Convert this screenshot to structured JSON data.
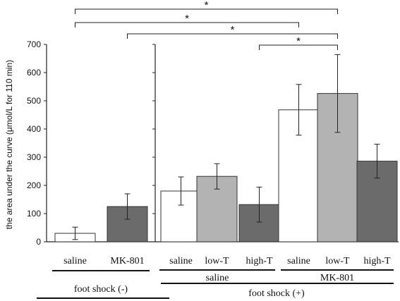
{
  "chart_data": {
    "type": "bar",
    "title": "",
    "ylabel": "the area under the curve (μmol/L for 110 min)",
    "ylim": [
      0,
      700
    ],
    "yticks": [
      0,
      100,
      200,
      300,
      400,
      500,
      600,
      700
    ],
    "panels": [
      {
        "group_label": "foot shock (-)",
        "bars": [
          {
            "category": "saline",
            "value": 30,
            "error": 22,
            "color": "#ffffff"
          },
          {
            "category": "MK-801",
            "value": 125,
            "error": 45,
            "color": "#6b6b6b"
          }
        ]
      },
      {
        "group_label": "foot shock (+)",
        "subgroups": [
          {
            "label": "saline",
            "bars": [
              {
                "category": "saline",
                "value": 180,
                "error": 50,
                "color": "#ffffff"
              },
              {
                "category": "low-T",
                "value": 232,
                "error": 45,
                "color": "#b3b3b3"
              },
              {
                "category": "high-T",
                "value": 132,
                "error": 62,
                "color": "#6b6b6b"
              }
            ]
          },
          {
            "label": "MK-801",
            "bars": [
              {
                "category": "saline",
                "value": 468,
                "error": 90,
                "color": "#ffffff"
              },
              {
                "category": "low-T",
                "value": 526,
                "error": 138,
                "color": "#b3b3b3"
              },
              {
                "category": "high-T",
                "value": 286,
                "error": 60,
                "color": "#6b6b6b"
              }
            ]
          }
        ]
      }
    ],
    "significance": [
      {
        "from": "foot shock (-) saline",
        "to": "MK-801 low-T",
        "label": "*"
      },
      {
        "from": "foot shock (-) saline",
        "to": "MK-801 saline",
        "label": "*"
      },
      {
        "from": "foot shock (-) MK-801",
        "to": "MK-801 low-T",
        "label": "*"
      },
      {
        "from": "saline high-T",
        "to": "MK-801 low-T",
        "label": "*"
      }
    ]
  }
}
